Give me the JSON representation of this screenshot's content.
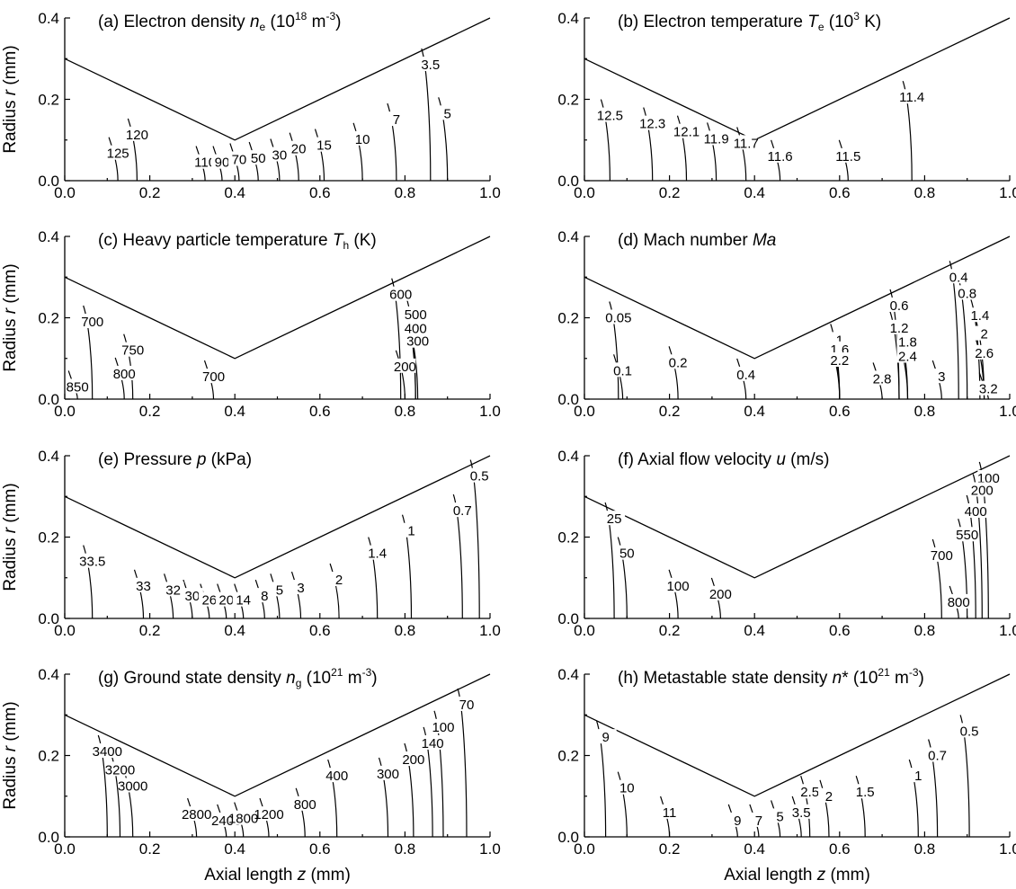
{
  "axes": {
    "x_label": "Axial length z (mm)",
    "y_label": "Radius r (mm)",
    "x_ticks": [
      "0.0",
      "0.2",
      "0.4",
      "0.6",
      "0.8",
      "1.0"
    ],
    "y_ticks": [
      "0.0",
      "0.2",
      "0.4"
    ],
    "xlim": [
      0,
      1.0
    ],
    "ylim": [
      0,
      0.4
    ]
  },
  "nozzle_wall": {
    "z": [
      0.0,
      0.4,
      1.0
    ],
    "r": [
      0.3,
      0.1,
      0.4
    ]
  },
  "chart_data": [
    {
      "type": "contour",
      "panel": "a",
      "title": "(a) Electron density n",
      "title_parts": {
        "pre": "(a) Electron density ",
        "sym": "n",
        "sub": "e",
        "post": " (10",
        "sup": "18",
        "post2": " m",
        "sup2": "-3",
        "post3": ")"
      },
      "xlabel": "",
      "ylabel": "Radius r (mm)",
      "xlim": [
        0,
        1.0
      ],
      "ylim": [
        0,
        0.4
      ],
      "contour_labels": [
        {
          "text": "125",
          "z": 0.125,
          "r": 0.067
        },
        {
          "text": "120",
          "z": 0.17,
          "r": 0.113
        },
        {
          "text": "110",
          "z": 0.33,
          "r": 0.045
        },
        {
          "text": "90",
          "z": 0.37,
          "r": 0.045
        },
        {
          "text": "70",
          "z": 0.41,
          "r": 0.052
        },
        {
          "text": "50",
          "z": 0.455,
          "r": 0.055
        },
        {
          "text": "30",
          "z": 0.505,
          "r": 0.063
        },
        {
          "text": "20",
          "z": 0.55,
          "r": 0.078
        },
        {
          "text": "15",
          "z": 0.61,
          "r": 0.087
        },
        {
          "text": "10",
          "z": 0.7,
          "r": 0.102
        },
        {
          "text": "7",
          "z": 0.78,
          "r": 0.15
        },
        {
          "text": "5",
          "z": 0.9,
          "r": 0.165
        },
        {
          "text": "3.5",
          "z": 0.86,
          "r": 0.285
        }
      ]
    },
    {
      "type": "contour",
      "panel": "b",
      "title": "(b) Electron temperature T",
      "title_parts": {
        "pre": "(b) Electron temperature ",
        "sym": "T",
        "sub": "e",
        "post": " (10",
        "sup": "3",
        "post2": " K)",
        "sup2": "",
        "post3": ""
      },
      "xlabel": "",
      "ylabel": "",
      "xlim": [
        0,
        1.0
      ],
      "ylim": [
        0,
        0.4
      ],
      "contour_labels": [
        {
          "text": "12.5",
          "z": 0.06,
          "r": 0.16
        },
        {
          "text": "12.3",
          "z": 0.16,
          "r": 0.14
        },
        {
          "text": "12.1",
          "z": 0.24,
          "r": 0.12
        },
        {
          "text": "11.9",
          "z": 0.31,
          "r": 0.103
        },
        {
          "text": "11.7",
          "z": 0.38,
          "r": 0.092
        },
        {
          "text": "11.6",
          "z": 0.46,
          "r": 0.06
        },
        {
          "text": "11.5",
          "z": 0.62,
          "r": 0.06
        },
        {
          "text": "11.4",
          "z": 0.77,
          "r": 0.205
        }
      ]
    },
    {
      "type": "contour",
      "panel": "c",
      "title": "(c) Heavy particle temperature T",
      "title_parts": {
        "pre": "(c) Heavy particle temperature ",
        "sym": "T",
        "sub": "h",
        "post": " (K)",
        "sup": "",
        "post2": "",
        "sup2": "",
        "post3": ""
      },
      "xlabel": "",
      "ylabel": "Radius r (mm)",
      "xlim": [
        0,
        1.0
      ],
      "ylim": [
        0,
        0.4
      ],
      "contour_labels": [
        {
          "text": "700",
          "z": 0.065,
          "r": 0.19
        },
        {
          "text": "750",
          "z": 0.16,
          "r": 0.12
        },
        {
          "text": "800",
          "z": 0.14,
          "r": 0.062
        },
        {
          "text": "850",
          "z": 0.03,
          "r": 0.03
        },
        {
          "text": "700",
          "z": 0.35,
          "r": 0.055
        },
        {
          "text": "600",
          "z": 0.79,
          "r": 0.257
        },
        {
          "text": "500",
          "z": 0.825,
          "r": 0.208
        },
        {
          "text": "400",
          "z": 0.825,
          "r": 0.174
        },
        {
          "text": "300",
          "z": 0.83,
          "r": 0.142
        },
        {
          "text": "200",
          "z": 0.8,
          "r": 0.08
        }
      ]
    },
    {
      "type": "contour",
      "panel": "d",
      "title": "(d) Mach number Ma",
      "title_parts": {
        "pre": "(d) Mach number ",
        "sym": "Ma",
        "sub": "",
        "post": "",
        "sup": "",
        "post2": "",
        "sup2": "",
        "post3": ""
      },
      "xlabel": "",
      "ylabel": "",
      "xlim": [
        0,
        1.0
      ],
      "ylim": [
        0,
        0.4
      ],
      "contour_labels": [
        {
          "text": "0.05",
          "z": 0.08,
          "r": 0.2
        },
        {
          "text": "0.1",
          "z": 0.09,
          "r": 0.07
        },
        {
          "text": "0.2",
          "z": 0.22,
          "r": 0.09
        },
        {
          "text": "0.4",
          "z": 0.38,
          "r": 0.06
        },
        {
          "text": "0.4",
          "z": 0.88,
          "r": 0.3
        },
        {
          "text": "0.6",
          "z": 0.74,
          "r": 0.23
        },
        {
          "text": "0.8",
          "z": 0.9,
          "r": 0.26
        },
        {
          "text": "1",
          "z": 0.6,
          "r": 0.145
        },
        {
          "text": "1.2",
          "z": 0.74,
          "r": 0.175
        },
        {
          "text": "1.4",
          "z": 0.93,
          "r": 0.205
        },
        {
          "text": "1.6",
          "z": 0.6,
          "r": 0.122
        },
        {
          "text": "1.8",
          "z": 0.76,
          "r": 0.14
        },
        {
          "text": "2",
          "z": 0.94,
          "r": 0.16
        },
        {
          "text": "2.2",
          "z": 0.6,
          "r": 0.095
        },
        {
          "text": "2.4",
          "z": 0.76,
          "r": 0.105
        },
        {
          "text": "2.6",
          "z": 0.94,
          "r": 0.113
        },
        {
          "text": "2.8",
          "z": 0.7,
          "r": 0.05
        },
        {
          "text": "3",
          "z": 0.84,
          "r": 0.055
        },
        {
          "text": "3.2",
          "z": 0.95,
          "r": 0.025
        }
      ]
    },
    {
      "type": "contour",
      "panel": "e",
      "title": "(e) Pressure p (kPa)",
      "title_parts": {
        "pre": "(e) Pressure ",
        "sym": "p",
        "sub": "",
        "post": " (kPa)",
        "sup": "",
        "post2": "",
        "sup2": "",
        "post3": ""
      },
      "xlabel": "",
      "ylabel": "Radius r (mm)",
      "xlim": [
        0,
        1.0
      ],
      "ylim": [
        0,
        0.4
      ],
      "contour_labels": [
        {
          "text": "33.5",
          "z": 0.065,
          "r": 0.14
        },
        {
          "text": "33",
          "z": 0.185,
          "r": 0.08
        },
        {
          "text": "32",
          "z": 0.255,
          "r": 0.07
        },
        {
          "text": "30",
          "z": 0.3,
          "r": 0.055
        },
        {
          "text": "26",
          "z": 0.34,
          "r": 0.045
        },
        {
          "text": "20",
          "z": 0.38,
          "r": 0.045
        },
        {
          "text": "14",
          "z": 0.42,
          "r": 0.045
        },
        {
          "text": "8",
          "z": 0.47,
          "r": 0.055
        },
        {
          "text": "5",
          "z": 0.505,
          "r": 0.07
        },
        {
          "text": "3",
          "z": 0.555,
          "r": 0.075
        },
        {
          "text": "2",
          "z": 0.645,
          "r": 0.095
        },
        {
          "text": "1.4",
          "z": 0.735,
          "r": 0.16
        },
        {
          "text": "1",
          "z": 0.815,
          "r": 0.215
        },
        {
          "text": "0.7",
          "z": 0.935,
          "r": 0.265
        },
        {
          "text": "0.5",
          "z": 0.975,
          "r": 0.35
        }
      ]
    },
    {
      "type": "contour",
      "panel": "f",
      "title": "(f) Axial flow velocity u (m/s)",
      "title_parts": {
        "pre": "(f) Axial flow velocity ",
        "sym": "u",
        "sub": "",
        "post": " (m/s)",
        "sup": "",
        "post2": "",
        "sup2": "",
        "post3": ""
      },
      "xlabel": "",
      "ylabel": "",
      "xlim": [
        0,
        1.0
      ],
      "ylim": [
        0,
        0.4
      ],
      "contour_labels": [
        {
          "text": "25",
          "z": 0.07,
          "r": 0.245
        },
        {
          "text": "50",
          "z": 0.1,
          "r": 0.16
        },
        {
          "text": "100",
          "z": 0.22,
          "r": 0.08
        },
        {
          "text": "200",
          "z": 0.32,
          "r": 0.06
        },
        {
          "text": "100",
          "z": 0.95,
          "r": 0.345
        },
        {
          "text": "200",
          "z": 0.935,
          "r": 0.315
        },
        {
          "text": "400",
          "z": 0.92,
          "r": 0.263
        },
        {
          "text": "550",
          "z": 0.9,
          "r": 0.205
        },
        {
          "text": "700",
          "z": 0.84,
          "r": 0.155
        },
        {
          "text": "800",
          "z": 0.88,
          "r": 0.04
        }
      ]
    },
    {
      "type": "contour",
      "panel": "g",
      "title": "(g) Ground state density n",
      "title_parts": {
        "pre": "(g) Ground state density ",
        "sym": "n",
        "sub": "g",
        "post": " (10",
        "sup": "21",
        "post2": " m",
        "sup2": "-3",
        "post3": ")"
      },
      "xlabel": "Axial length z (mm)",
      "ylabel": "Radius r (mm)",
      "xlim": [
        0,
        1.0
      ],
      "ylim": [
        0,
        0.4
      ],
      "contour_labels": [
        {
          "text": "3400",
          "z": 0.1,
          "r": 0.21
        },
        {
          "text": "3200",
          "z": 0.13,
          "r": 0.165
        },
        {
          "text": "3000",
          "z": 0.16,
          "r": 0.125
        },
        {
          "text": "2800",
          "z": 0.31,
          "r": 0.055
        },
        {
          "text": "2400",
          "z": 0.38,
          "r": 0.04
        },
        {
          "text": "1800",
          "z": 0.42,
          "r": 0.045
        },
        {
          "text": "1200",
          "z": 0.48,
          "r": 0.055
        },
        {
          "text": "800",
          "z": 0.565,
          "r": 0.08
        },
        {
          "text": "400",
          "z": 0.64,
          "r": 0.15
        },
        {
          "text": "300",
          "z": 0.76,
          "r": 0.155
        },
        {
          "text": "200",
          "z": 0.82,
          "r": 0.19
        },
        {
          "text": "140",
          "z": 0.865,
          "r": 0.23
        },
        {
          "text": "100",
          "z": 0.89,
          "r": 0.27
        },
        {
          "text": "70",
          "z": 0.945,
          "r": 0.325
        }
      ]
    },
    {
      "type": "contour",
      "panel": "h",
      "title": "(h) Metastable state density n*",
      "title_parts": {
        "pre": "(h) Metastable state density ",
        "sym": "n",
        "sub": "",
        "post": "* (10",
        "sup": "21",
        "post2": " m",
        "sup2": "-3",
        "post3": ")"
      },
      "xlabel": "Axial length z (mm)",
      "ylabel": "",
      "xlim": [
        0,
        1.0
      ],
      "ylim": [
        0,
        0.4
      ],
      "contour_labels": [
        {
          "text": "9",
          "z": 0.05,
          "r": 0.245
        },
        {
          "text": "10",
          "z": 0.1,
          "r": 0.12
        },
        {
          "text": "11",
          "z": 0.2,
          "r": 0.06
        },
        {
          "text": "9",
          "z": 0.36,
          "r": 0.04
        },
        {
          "text": "7",
          "z": 0.41,
          "r": 0.04
        },
        {
          "text": "5",
          "z": 0.46,
          "r": 0.05
        },
        {
          "text": "3.5",
          "z": 0.51,
          "r": 0.06
        },
        {
          "text": "2.5",
          "z": 0.53,
          "r": 0.11
        },
        {
          "text": "2",
          "z": 0.575,
          "r": 0.1
        },
        {
          "text": "1.5",
          "z": 0.66,
          "r": 0.11
        },
        {
          "text": "1",
          "z": 0.785,
          "r": 0.15
        },
        {
          "text": "0.7",
          "z": 0.83,
          "r": 0.2
        },
        {
          "text": "0.5",
          "z": 0.905,
          "r": 0.26
        }
      ]
    }
  ]
}
